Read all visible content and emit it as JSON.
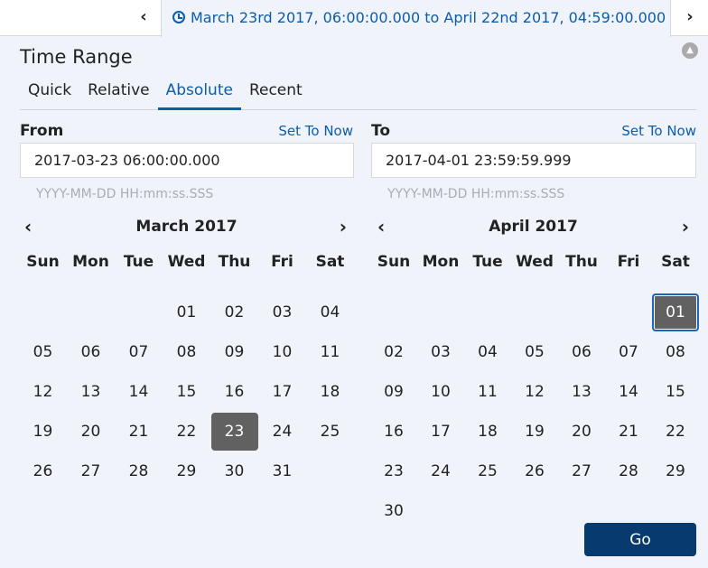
{
  "topbar": {
    "range_text": "March 23rd 2017, 06:00:00.000 to April 22nd 2017, 04:59:00.000",
    "prev_icon": "chevron-left",
    "next_icon": "chevron-right",
    "clock_icon": "clock"
  },
  "panel": {
    "title": "Time Range",
    "tabs": [
      "Quick",
      "Relative",
      "Absolute",
      "Recent"
    ],
    "active_tab": "Absolute"
  },
  "from": {
    "label": "From",
    "set_now": "Set To Now",
    "value": "2017-03-23 06:00:00.000",
    "hint": "YYYY-MM-DD HH:mm:ss.SSS"
  },
  "to": {
    "label": "To",
    "set_now": "Set To Now",
    "value": "2017-04-01 23:59:59.999",
    "hint": "YYYY-MM-DD HH:mm:ss.SSS"
  },
  "weekdays": [
    "Sun",
    "Mon",
    "Tue",
    "Wed",
    "Thu",
    "Fri",
    "Sat"
  ],
  "calendars": [
    {
      "month": "March 2017",
      "selected": "23",
      "weeks": [
        [
          "",
          "",
          "",
          "01",
          "02",
          "03",
          "04"
        ],
        [
          "05",
          "06",
          "07",
          "08",
          "09",
          "10",
          "11"
        ],
        [
          "12",
          "13",
          "14",
          "15",
          "16",
          "17",
          "18"
        ],
        [
          "19",
          "20",
          "21",
          "22",
          "23",
          "24",
          "25"
        ],
        [
          "26",
          "27",
          "28",
          "29",
          "30",
          "31",
          ""
        ]
      ]
    },
    {
      "month": "April 2017",
      "selected": "01",
      "weeks": [
        [
          "",
          "",
          "",
          "",
          "",
          "",
          "01"
        ],
        [
          "02",
          "03",
          "04",
          "05",
          "06",
          "07",
          "08"
        ],
        [
          "09",
          "10",
          "11",
          "12",
          "13",
          "14",
          "15"
        ],
        [
          "16",
          "17",
          "18",
          "19",
          "20",
          "21",
          "22"
        ],
        [
          "23",
          "24",
          "25",
          "26",
          "27",
          "28",
          "29"
        ],
        [
          "30",
          "",
          "",
          "",
          "",
          "",
          ""
        ]
      ]
    }
  ],
  "go_label": "Go",
  "colors": {
    "accent": "#0b5cab",
    "button": "#073a6e",
    "selected_day": "#616161"
  }
}
